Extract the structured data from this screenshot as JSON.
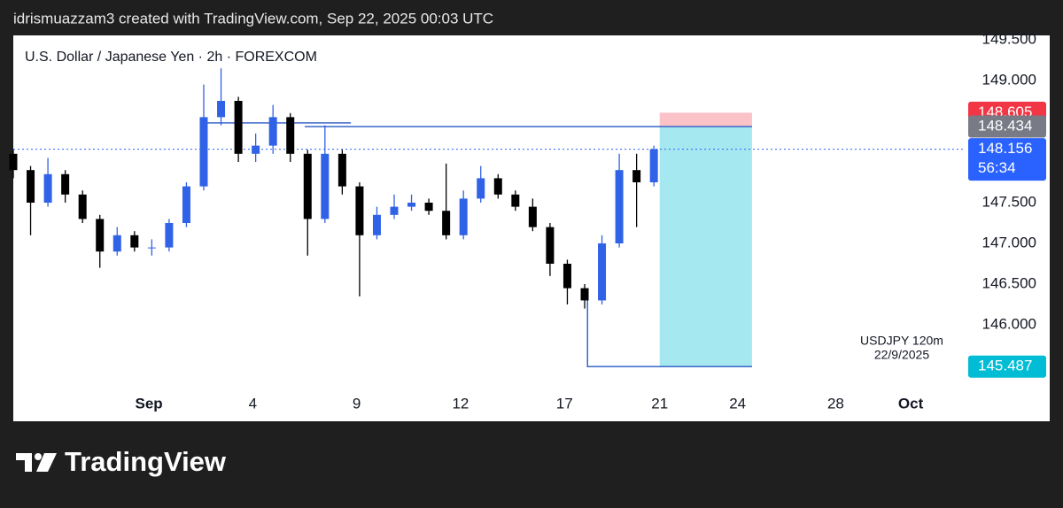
{
  "header": {
    "text": "idrismuazzam3 created with TradingView.com, Sep 22, 2025 00:03 UTC"
  },
  "footer": {
    "logo": "TradingView"
  },
  "chart_data": {
    "type": "candlestick",
    "title": "U.S. Dollar / Japanese Yen · 2h · FOREXCOM",
    "x": [
      0,
      6,
      12,
      18,
      24,
      30,
      36,
      42,
      48,
      54,
      60,
      66,
      72,
      78,
      84,
      90,
      96,
      102,
      108,
      114,
      120,
      126,
      132,
      138,
      144,
      150,
      156,
      162,
      168,
      174,
      180,
      186,
      192,
      198,
      204,
      210,
      216,
      222
    ],
    "open": [
      148.1,
      147.9,
      147.5,
      147.85,
      147.6,
      147.3,
      146.9,
      147.1,
      146.95,
      146.95,
      147.25,
      147.7,
      148.55,
      148.75,
      148.1,
      148.2,
      148.55,
      148.1,
      147.3,
      148.1,
      147.7,
      147.1,
      147.35,
      147.45,
      147.5,
      147.4,
      147.1,
      147.55,
      147.8,
      147.6,
      147.45,
      147.2,
      146.75,
      146.45,
      146.3,
      147.0,
      147.9,
      147.75
    ],
    "high": [
      148.15,
      147.95,
      148.05,
      147.9,
      147.65,
      147.35,
      147.2,
      147.15,
      147.05,
      147.3,
      147.75,
      148.95,
      149.15,
      148.8,
      148.35,
      148.7,
      148.6,
      148.15,
      148.45,
      148.15,
      147.75,
      147.45,
      147.6,
      147.6,
      147.55,
      147.98,
      147.65,
      147.95,
      147.85,
      147.65,
      147.55,
      147.25,
      146.8,
      146.5,
      147.1,
      148.1,
      148.1,
      148.2
    ],
    "low": [
      147.8,
      147.1,
      147.45,
      147.5,
      147.25,
      146.7,
      146.85,
      146.9,
      146.85,
      146.9,
      147.2,
      147.65,
      148.45,
      148.0,
      148.0,
      148.1,
      148.0,
      146.85,
      147.25,
      147.6,
      146.35,
      147.05,
      147.3,
      147.4,
      147.35,
      147.05,
      147.05,
      147.5,
      147.55,
      147.4,
      147.15,
      146.6,
      146.25,
      146.2,
      146.25,
      146.95,
      147.2,
      147.7
    ],
    "close": [
      147.9,
      147.5,
      147.85,
      147.6,
      147.3,
      146.9,
      147.1,
      146.95,
      146.95,
      147.25,
      147.7,
      148.55,
      148.75,
      148.1,
      148.2,
      148.55,
      148.1,
      147.3,
      148.1,
      147.7,
      147.1,
      147.35,
      147.45,
      147.5,
      147.4,
      147.1,
      147.55,
      147.8,
      147.6,
      147.45,
      147.2,
      146.75,
      146.45,
      146.3,
      147.0,
      147.9,
      147.75,
      148.156
    ],
    "up_color": "#2f62e6",
    "down_color": "#000000",
    "xlim": [
      0,
      330
    ],
    "xticks": [
      {
        "value": 47,
        "label": "Sep"
      },
      {
        "value": 83,
        "label": "4"
      },
      {
        "value": 119,
        "label": "9"
      },
      {
        "value": 155,
        "label": "12"
      },
      {
        "value": 191,
        "label": "17"
      },
      {
        "value": 224,
        "label": "21"
      },
      {
        "value": 251,
        "label": "24"
      },
      {
        "value": 285,
        "label": "28"
      },
      {
        "value": 311,
        "label": "Oct"
      }
    ],
    "ylim": [
      145.207,
      149.554
    ],
    "yticks": [
      {
        "value": 146,
        "label": "146.000"
      },
      {
        "value": 146.5,
        "label": "146.500"
      },
      {
        "value": 147,
        "label": "147.000"
      },
      {
        "value": 147.5,
        "label": "147.500"
      },
      {
        "value": 149,
        "label": "149.000"
      },
      {
        "value": 149.5,
        "label": "149.500"
      }
    ],
    "countdown": "56:34",
    "position": {
      "x": [
        224,
        256
      ],
      "entry": 148.434,
      "stop": 148.605,
      "target": 145.487,
      "entry_color": "#787b86",
      "stop_color": "#f23645",
      "target_color": "#00bcd4",
      "price_color": "#2962ff"
    },
    "drawings": [
      {
        "x": [
          67,
          117
        ],
        "y": [
          148.48,
          148.48
        ]
      },
      {
        "x": [
          101,
          256
        ],
        "y": [
          148.434,
          148.434
        ]
      },
      {
        "x": [
          199,
          199,
          256
        ],
        "y": [
          146.4,
          145.487,
          145.487
        ]
      }
    ],
    "drawing_color": "#3a66c8",
    "annotation": [
      "USDJPY 120m",
      "22/9/2025"
    ]
  }
}
